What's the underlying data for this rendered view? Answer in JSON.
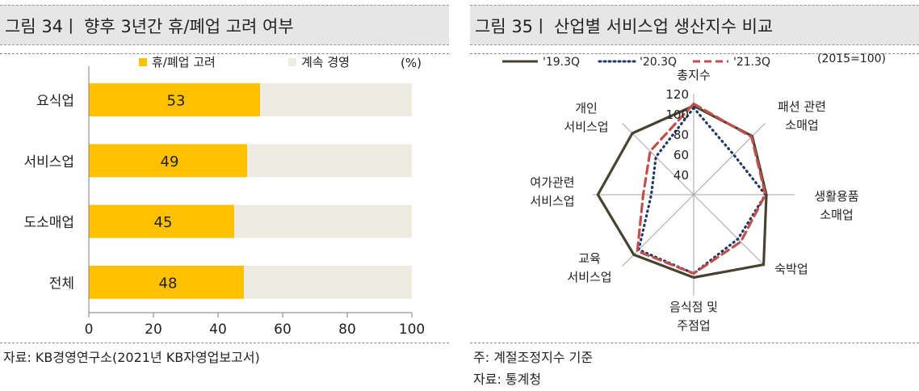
{
  "left": {
    "title": "그림 34ㅣ 향후 3년간 휴/폐업 고려 여부",
    "unit": "(%)",
    "source": "자료: KB경영연구소(2021년 KB자영업보고서)",
    "chart_data": {
      "type": "bar",
      "orientation": "horizontal",
      "stacked": true,
      "categories": [
        "요식업",
        "서비스업",
        "도소매업",
        "전체"
      ],
      "series": [
        {
          "name": "휴/폐업 고려",
          "values": [
            53,
            49,
            45,
            48
          ],
          "color": "#FFC000"
        },
        {
          "name": "계속 경영",
          "values": [
            47,
            51,
            55,
            52
          ],
          "color": "#EEECE1"
        }
      ],
      "xlim": [
        0,
        100
      ],
      "xticks": [
        "0",
        "20",
        "40",
        "60",
        "80",
        "100"
      ],
      "grid": false,
      "legend": "top"
    }
  },
  "right": {
    "title": "그림 35ㅣ 산업별 서비스업 생산지수 비교",
    "unit": "(2015=100)",
    "notes": [
      "주: 계절조정지수 기준",
      "자료: 통계청"
    ],
    "chart_data": {
      "type": "radar",
      "axes": [
        [
          "총지수"
        ],
        [
          "패션 관련",
          "소매업"
        ],
        [
          "생활용품",
          "소매업"
        ],
        [
          "숙박업"
        ],
        [
          "음식점 및",
          "주점업"
        ],
        [
          "교육",
          "서비스업"
        ],
        [
          "여가관련",
          "서비스업"
        ],
        [
          "개인",
          "서비스업"
        ]
      ],
      "rlim": [
        20,
        120
      ],
      "rticks": [
        "40",
        "60",
        "80",
        "100",
        "120"
      ],
      "series": [
        {
          "name": "'19.3Q",
          "values": [
            108,
            102,
            92,
            118,
            102,
            104,
            115,
            106
          ],
          "color": "#4A4231",
          "style": "solid"
        },
        {
          "name": "'20.3Q",
          "values": [
            106,
            76,
            91,
            82,
            98,
            97,
            62,
            73
          ],
          "color": "#1F3864",
          "style": "dotted"
        },
        {
          "name": "'21.3Q",
          "values": [
            110,
            101,
            91,
            86,
            98,
            99,
            70,
            81
          ],
          "color": "#C0504D",
          "style": "dashed"
        }
      ],
      "legend": "top"
    }
  }
}
